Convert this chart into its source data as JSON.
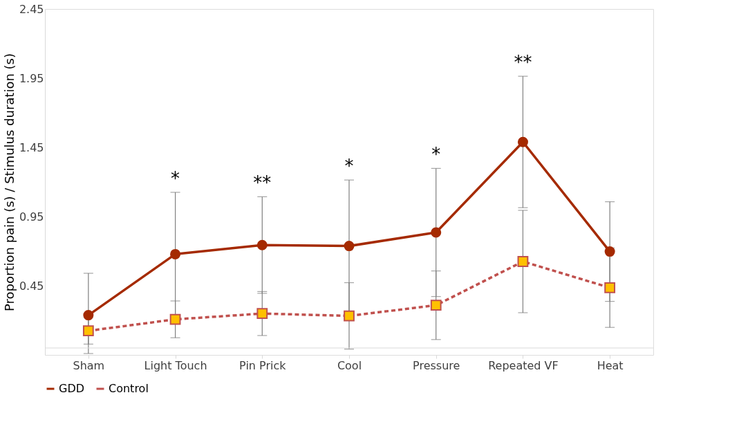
{
  "chart_data": {
    "type": "line",
    "ylabel": "Proportion pain (s) / Stimulus duration (s)",
    "categories": [
      "Sham",
      "Light Touch",
      "Pin Prick",
      "Cool",
      "Pressure",
      "Repeated VF",
      "Heat"
    ],
    "series": [
      {
        "name": "GDD",
        "color": "#a52a00",
        "marker": "circle",
        "line_style": "solid",
        "values": [
          0.237,
          0.678,
          0.744,
          0.737,
          0.835,
          1.489,
          0.697
        ],
        "errors": [
          [
            -0.04,
            0.54
          ],
          0.447,
          0.349,
          0.477,
          0.463,
          0.475,
          0.36
        ]
      },
      {
        "name": "Control",
        "color": "#c0504d",
        "marker": "square",
        "line_style": "dashed",
        "values": [
          0.124,
          0.207,
          0.249,
          0.232,
          0.309,
          0.625,
          0.436
        ],
        "errors": [
          0.096,
          0.133,
          0.159,
          0.24,
          0.248,
          0.37,
          0.287
        ]
      }
    ],
    "ylim": [
      -0.05,
      2.45
    ],
    "yticks": [
      0.45,
      0.95,
      1.45,
      1.95,
      2.45
    ],
    "ref_lines": [
      {
        "axis": "y",
        "value": 0,
        "color": "#d9d9d9"
      }
    ],
    "annotations": [
      "*",
      "**",
      "*",
      "*",
      "**"
    ],
    "grid": false,
    "legend": "bottom"
  }
}
